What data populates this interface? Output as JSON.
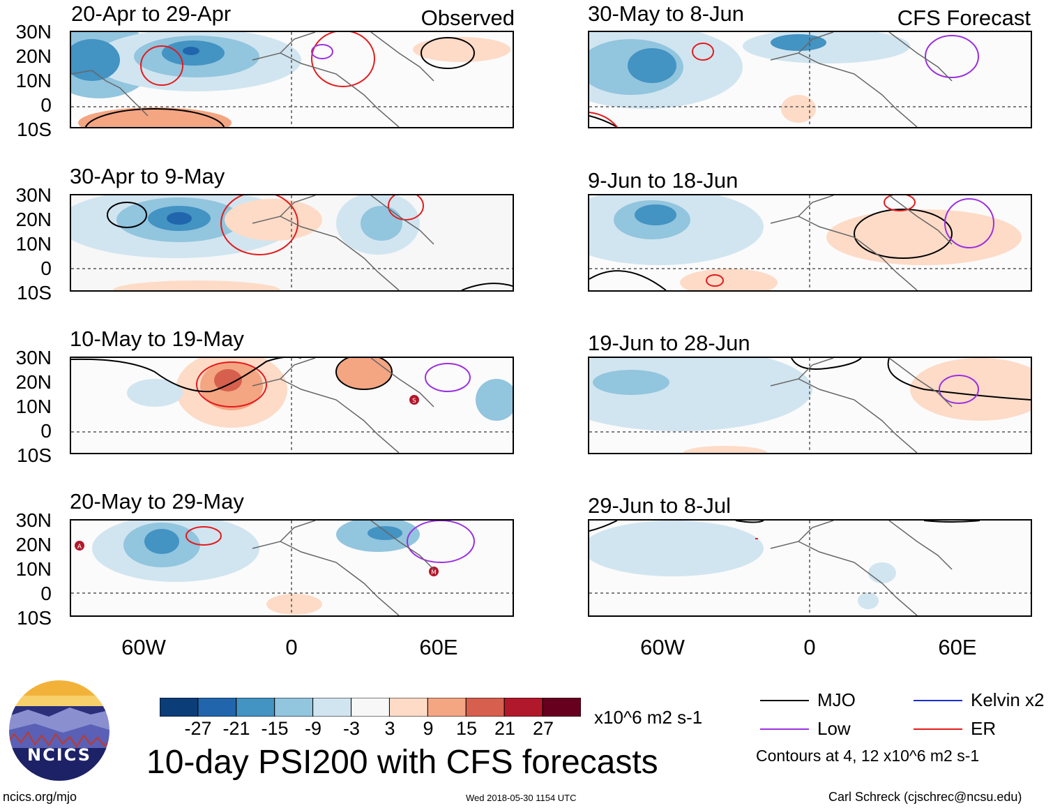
{
  "main_title": "10-day PSI200 with CFS forecasts",
  "observed_tag": "Observed",
  "forecast_tag": "CFS Forecast",
  "observed_panels": [
    {
      "label": "20-Apr to 29-Apr"
    },
    {
      "label": "30-Apr to 9-May"
    },
    {
      "label": "10-May to 19-May"
    },
    {
      "label": "20-May to 29-May"
    }
  ],
  "forecast_panels": [
    {
      "label": "30-May to 8-Jun"
    },
    {
      "label": "9-Jun to 18-Jun"
    },
    {
      "label": "19-Jun to 28-Jun"
    },
    {
      "label": "29-Jun to 8-Jul"
    }
  ],
  "lat_labels": [
    "30N",
    "20N",
    "10N",
    "0",
    "10S"
  ],
  "lon_labels": [
    "60W",
    "0",
    "60E"
  ],
  "colorbar": {
    "ticks": [
      "-27",
      "-21",
      "-15",
      "-9",
      "-3",
      "3",
      "9",
      "15",
      "21",
      "27"
    ],
    "colors": [
      "#0b3d78",
      "#2166ac",
      "#4393c3",
      "#92c5de",
      "#d1e5f0",
      "#f7f7f7",
      "#fddbc7",
      "#f4a582",
      "#d6604d",
      "#b2182b",
      "#67001f"
    ],
    "units": "x10^6 m2 s-1"
  },
  "legend": {
    "items": [
      {
        "label": "MJO",
        "color": "#000000"
      },
      {
        "label": "Kelvin x2",
        "color": "#1a2ccc"
      },
      {
        "label": "Low",
        "color": "#9b30e0"
      },
      {
        "label": "ER",
        "color": "#e41a1c"
      }
    ],
    "contour_note": "Contours at 4, 12 x10^6 m2 s-1"
  },
  "logo": {
    "text": "NCICS"
  },
  "footer": {
    "left": "ncics.org/mjo",
    "center": "Wed 2018-05-30 1154 UTC",
    "right": "Carl Schreck (cjschrec@ncsu.edu)"
  },
  "storm_markers": [
    "S",
    "A",
    "M"
  ]
}
